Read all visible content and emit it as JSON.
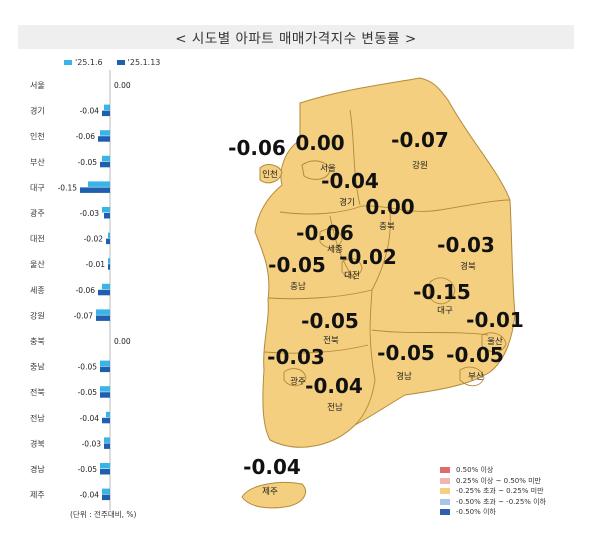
{
  "title": "< 시도별 아파트 매매가격지수 변동률 >",
  "legend_series": [
    {
      "label": "'25.1.6",
      "color": "#3ab3e6"
    },
    {
      "label": "'25.1.13",
      "color": "#1f5fb0"
    }
  ],
  "unit_note": "(단위 : 전주대비, %)",
  "chart_data": {
    "type": "bar",
    "orientation": "horizontal",
    "categories": [
      "서울",
      "경기",
      "인천",
      "부산",
      "대구",
      "광주",
      "대전",
      "울산",
      "세종",
      "강원",
      "충북",
      "충남",
      "전북",
      "전남",
      "경북",
      "경남",
      "제주"
    ],
    "series": [
      {
        "name": "'25.1.6",
        "values": [
          0.0,
          -0.03,
          -0.05,
          -0.04,
          -0.11,
          -0.04,
          -0.01,
          -0.01,
          -0.04,
          -0.07,
          0.0,
          -0.05,
          -0.05,
          -0.02,
          -0.03,
          -0.05,
          -0.04
        ]
      },
      {
        "name": "'25.1.13",
        "values": [
          0.0,
          -0.04,
          -0.06,
          -0.05,
          -0.15,
          -0.03,
          -0.02,
          -0.01,
          -0.06,
          -0.07,
          0.0,
          -0.05,
          -0.05,
          -0.04,
          -0.03,
          -0.05,
          -0.04
        ]
      }
    ],
    "labels": [
      "0.00",
      "-0.04",
      "-0.06",
      "-0.05",
      "-0.15",
      "-0.03",
      "-0.02",
      "-0.01",
      "-0.06",
      "-0.07",
      "0.00",
      "-0.05",
      "-0.05",
      "-0.04",
      "-0.03",
      "-0.05",
      "-0.04"
    ]
  },
  "map": {
    "regions": [
      {
        "name": "서울",
        "value": "0.00"
      },
      {
        "name": "인천",
        "value": "-0.06"
      },
      {
        "name": "강원",
        "value": "-0.07"
      },
      {
        "name": "경기",
        "value": "-0.04"
      },
      {
        "name": "충북",
        "value": "0.00"
      },
      {
        "name": "세종",
        "value": "-0.06"
      },
      {
        "name": "경북",
        "value": "-0.03"
      },
      {
        "name": "충남",
        "value": "-0.05"
      },
      {
        "name": "대전",
        "value": "-0.02"
      },
      {
        "name": "대구",
        "value": "-0.15"
      },
      {
        "name": "울산",
        "value": "-0.01"
      },
      {
        "name": "전북",
        "value": "-0.05"
      },
      {
        "name": "광주",
        "value": "-0.03"
      },
      {
        "name": "경남",
        "value": "-0.05"
      },
      {
        "name": "부산",
        "value": "-0.05"
      },
      {
        "name": "전남",
        "value": "-0.04"
      },
      {
        "name": "제주",
        "value": "-0.04"
      }
    ],
    "fill_color": "#f3cf7f",
    "stroke_color": "#b48a3a"
  },
  "color_legend": [
    {
      "label": "0.50% 이상",
      "color": "#e06b6b"
    },
    {
      "label": "0.25% 이상 ~ 0.50% 미만",
      "color": "#f4b3b3"
    },
    {
      "label": "-0.25% 초과 ~ 0.25% 미만",
      "color": "#f3cf7f"
    },
    {
      "label": "-0.50% 초과 ~ -0.25% 이하",
      "color": "#a9c6ea"
    },
    {
      "label": "-0.50% 이하",
      "color": "#2f5fb3"
    }
  ]
}
